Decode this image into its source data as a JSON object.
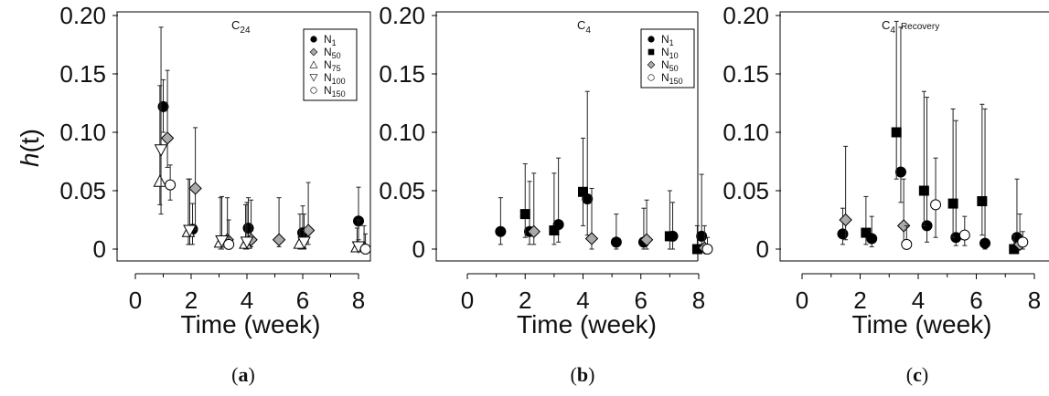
{
  "y_axis_title": "h(t)",
  "chart_data": [
    {
      "type": "scatter",
      "panel": "(a)",
      "title_main": "C",
      "title_sub": "24",
      "title_suffix": "",
      "xlabel": "Time (week)",
      "xlim": [
        0,
        8.5
      ],
      "ylim": [
        0,
        0.205
      ],
      "x_ticks": [
        "0",
        "2",
        "4",
        "6",
        "8"
      ],
      "y_ticks": [
        "0",
        "0.05",
        "0.10",
        "0.15",
        "0.20"
      ],
      "legend": "top-right",
      "error_bars": true,
      "series": [
        {
          "name": "N",
          "sub": "1",
          "marker": "circle",
          "fill": "#000000",
          "points": [
            [
              1.0,
              0.122,
              0.1,
              0.145
            ],
            [
              2.05,
              0.017,
              0.004,
              0.039
            ],
            [
              4.05,
              0.018,
              0.006,
              0.044
            ],
            [
              6.0,
              0.014,
              0.004,
              0.037
            ],
            [
              8.0,
              0.024,
              0.008,
              0.053
            ]
          ]
        },
        {
          "name": "N",
          "sub": "50",
          "marker": "diamond",
          "fill": "#a9a9a9",
          "points": [
            [
              1.15,
              0.095,
              0.07,
              0.153
            ],
            [
              2.15,
              0.052,
              0.017,
              0.104
            ],
            [
              3.3,
              0.008,
              0.002,
              0.044
            ],
            [
              4.15,
              0.008,
              0.002,
              0.042
            ],
            [
              5.15,
              0.008,
              0.002,
              0.044
            ],
            [
              6.2,
              0.016,
              0.004,
              0.057
            ],
            [
              8.2,
              0.001,
              0.0,
              0.02
            ]
          ]
        },
        {
          "name": "N",
          "sub": "75",
          "marker": "triangle-up",
          "fill": "#ffffff",
          "points": [
            [
              0.88,
              0.058,
              0.038,
              0.14
            ],
            [
              1.9,
              0.015,
              0.004,
              0.06
            ],
            [
              3.05,
              0.006,
              0.0,
              0.044
            ],
            [
              3.95,
              0.005,
              0.0,
              0.038
            ],
            [
              5.9,
              0.005,
              0.0,
              0.03
            ],
            [
              7.95,
              0.002,
              0.0,
              0.018
            ]
          ]
        },
        {
          "name": "N",
          "sub": "100",
          "marker": "triangle-down",
          "fill": "#ffffff",
          "points": [
            [
              0.92,
              0.085,
              0.03,
              0.19
            ],
            [
              1.95,
              0.016,
              0.004,
              0.06
            ],
            [
              3.1,
              0.007,
              0.0,
              0.045
            ],
            [
              4.0,
              0.006,
              0.0,
              0.04
            ],
            [
              6.05,
              0.006,
              0.0,
              0.03
            ],
            [
              8.0,
              0.002,
              0.0,
              0.025
            ]
          ]
        },
        {
          "name": "N",
          "sub": "150",
          "marker": "circle",
          "fill": "#ffffff",
          "points": [
            [
              1.25,
              0.055,
              0.042,
              0.072
            ],
            [
              3.35,
              0.004,
              0.0,
              0.025
            ],
            [
              8.25,
              0.0,
              0.0,
              0.013
            ]
          ]
        }
      ]
    },
    {
      "type": "scatter",
      "panel": "(b)",
      "title_main": "C",
      "title_sub": "4",
      "title_suffix": "",
      "xlabel": "Time (week)",
      "xlim": [
        0,
        8.5
      ],
      "ylim": [
        0,
        0.205
      ],
      "x_ticks": [
        "0",
        "2",
        "4",
        "6",
        "8"
      ],
      "y_ticks": [
        "0",
        "0.05",
        "0.10",
        "0.15",
        "0.20"
      ],
      "legend": "top-right",
      "error_bars": true,
      "series": [
        {
          "name": "N",
          "sub": "1",
          "marker": "circle",
          "fill": "#000000",
          "points": [
            [
              1.15,
              0.015,
              0.004,
              0.044
            ],
            [
              2.15,
              0.015,
              0.004,
              0.058
            ],
            [
              3.15,
              0.021,
              0.006,
              0.078
            ],
            [
              4.15,
              0.043,
              0.012,
              0.135
            ],
            [
              5.15,
              0.006,
              0.0,
              0.03
            ],
            [
              6.1,
              0.006,
              0.0,
              0.035
            ],
            [
              7.1,
              0.011,
              0.0,
              0.04
            ],
            [
              8.1,
              0.011,
              0.0,
              0.064
            ]
          ]
        },
        {
          "name": "N",
          "sub": "10",
          "marker": "square",
          "fill": "#000000",
          "points": [
            [
              2.0,
              0.03,
              0.01,
              0.073
            ],
            [
              3.0,
              0.016,
              0.004,
              0.065
            ],
            [
              4.0,
              0.049,
              0.02,
              0.095
            ],
            [
              7.0,
              0.011,
              0.0,
              0.05
            ],
            [
              7.95,
              0.0,
              0.0,
              0.02
            ]
          ]
        },
        {
          "name": "N",
          "sub": "50",
          "marker": "diamond",
          "fill": "#a9a9a9",
          "points": [
            [
              2.3,
              0.015,
              0.004,
              0.065
            ],
            [
              4.3,
              0.009,
              0.0,
              0.052
            ],
            [
              6.2,
              0.008,
              0.0,
              0.042
            ],
            [
              8.2,
              0.001,
              0.0,
              0.02
            ]
          ]
        },
        {
          "name": "N",
          "sub": "150",
          "marker": "circle",
          "fill": "#ffffff",
          "points": [
            [
              8.3,
              0.0,
              0.0,
              0.01
            ]
          ]
        }
      ]
    },
    {
      "type": "scatter",
      "panel": "(c)",
      "title_main": "C",
      "title_sub": "4",
      "title_suffix": "Recovery",
      "xlabel": "Time (week)",
      "xlim": [
        0,
        8.5
      ],
      "ylim": [
        0,
        0.205
      ],
      "x_ticks": [
        "0",
        "2",
        "4",
        "6",
        "8"
      ],
      "y_ticks": [
        "0",
        "0.05",
        "0.10",
        "0.15",
        "0.20"
      ],
      "legend": "none",
      "error_bars": true,
      "series": [
        {
          "name": "N",
          "sub": "1",
          "marker": "circle",
          "fill": "#000000",
          "points": [
            [
              1.4,
              0.013,
              0.004,
              0.035
            ],
            [
              2.4,
              0.009,
              0.002,
              0.028
            ],
            [
              3.4,
              0.066,
              0.04,
              0.19
            ],
            [
              4.3,
              0.02,
              0.006,
              0.13
            ],
            [
              5.3,
              0.01,
              0.003,
              0.11
            ],
            [
              6.3,
              0.005,
              0.0,
              0.12
            ],
            [
              7.4,
              0.01,
              0.0,
              0.06
            ]
          ]
        },
        {
          "name": "N",
          "sub": "10",
          "marker": "square",
          "fill": "#000000",
          "points": [
            [
              2.2,
              0.014,
              0.004,
              0.045
            ],
            [
              3.25,
              0.1,
              0.06,
              0.195
            ],
            [
              4.2,
              0.05,
              0.02,
              0.135
            ],
            [
              5.2,
              0.039,
              0.01,
              0.12
            ],
            [
              6.2,
              0.041,
              0.012,
              0.124
            ],
            [
              7.3,
              0.0,
              0.0,
              0.012
            ]
          ]
        },
        {
          "name": "N",
          "sub": "50",
          "marker": "diamond",
          "fill": "#a9a9a9",
          "points": [
            [
              1.5,
              0.025,
              0.008,
              0.088
            ],
            [
              3.5,
              0.02,
              0.006,
              0.06
            ],
            [
              7.5,
              0.004,
              0.0,
              0.03
            ]
          ]
        },
        {
          "name": "N",
          "sub": "150",
          "marker": "circle",
          "fill": "#ffffff",
          "points": [
            [
              3.6,
              0.004,
              0.0,
              0.02
            ],
            [
              4.6,
              0.038,
              0.01,
              0.078
            ],
            [
              5.6,
              0.012,
              0.003,
              0.028
            ],
            [
              7.6,
              0.006,
              0.0,
              0.015
            ]
          ]
        }
      ]
    }
  ]
}
